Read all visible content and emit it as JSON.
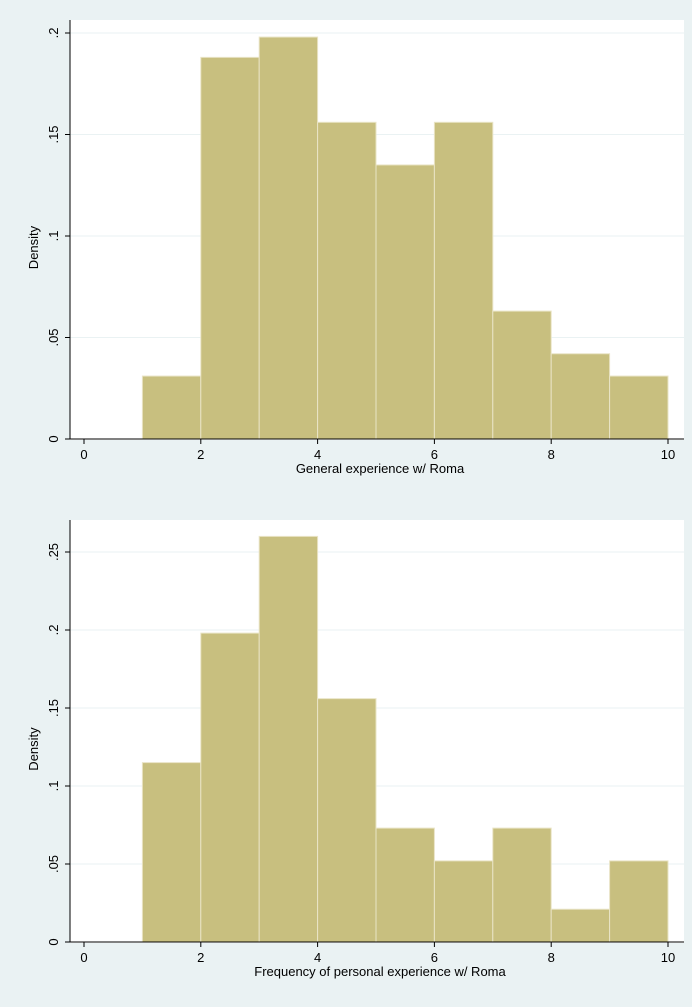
{
  "theme": {
    "background": "#eaf2f3",
    "plot_background": "#ffffff",
    "bar_fill": "#c8bf7f",
    "bar_stroke": "#e9e4c6",
    "grid": "#eaf2f3",
    "axis": "#000000"
  },
  "chart_data": [
    {
      "type": "bar",
      "histogram": true,
      "xlabel": "General experience w/ Roma",
      "ylabel": "Density",
      "xlim": [
        0,
        10
      ],
      "ylim": [
        0,
        0.2
      ],
      "xticks": [
        0,
        2,
        4,
        6,
        8,
        10
      ],
      "xtick_labels": [
        "0",
        "2",
        "4",
        "6",
        "8",
        "10"
      ],
      "yticks": [
        0,
        0.05,
        0.1,
        0.15,
        0.2
      ],
      "ytick_labels": [
        "0",
        ".05",
        ".1",
        ".15",
        ".2"
      ],
      "grid": true,
      "bins": [
        {
          "x0": 1,
          "x1": 2,
          "value": 0.031
        },
        {
          "x0": 2,
          "x1": 3,
          "value": 0.188
        },
        {
          "x0": 3,
          "x1": 4,
          "value": 0.198
        },
        {
          "x0": 4,
          "x1": 5,
          "value": 0.156
        },
        {
          "x0": 5,
          "x1": 6,
          "value": 0.135
        },
        {
          "x0": 6,
          "x1": 7,
          "value": 0.156
        },
        {
          "x0": 7,
          "x1": 8,
          "value": 0.063
        },
        {
          "x0": 8,
          "x1": 9,
          "value": 0.042
        },
        {
          "x0": 9,
          "x1": 10,
          "value": 0.031
        }
      ]
    },
    {
      "type": "bar",
      "histogram": true,
      "xlabel": "Frequency of personal experience w/ Roma",
      "ylabel": "Density",
      "xlim": [
        0,
        10
      ],
      "ylim": [
        0,
        0.25
      ],
      "xticks": [
        0,
        2,
        4,
        6,
        8,
        10
      ],
      "xtick_labels": [
        "0",
        "2",
        "4",
        "6",
        "8",
        "10"
      ],
      "yticks": [
        0,
        0.05,
        0.1,
        0.15,
        0.2,
        0.25
      ],
      "ytick_labels": [
        "0",
        ".05",
        ".1",
        ".15",
        ".2",
        ".25"
      ],
      "grid": true,
      "bins": [
        {
          "x0": 1,
          "x1": 2,
          "value": 0.115
        },
        {
          "x0": 2,
          "x1": 3,
          "value": 0.198
        },
        {
          "x0": 3,
          "x1": 4,
          "value": 0.26
        },
        {
          "x0": 4,
          "x1": 5,
          "value": 0.156
        },
        {
          "x0": 5,
          "x1": 6,
          "value": 0.073
        },
        {
          "x0": 6,
          "x1": 7,
          "value": 0.052
        },
        {
          "x0": 7,
          "x1": 8,
          "value": 0.073
        },
        {
          "x0": 8,
          "x1": 9,
          "value": 0.021
        },
        {
          "x0": 9,
          "x1": 10,
          "value": 0.052
        }
      ]
    }
  ]
}
